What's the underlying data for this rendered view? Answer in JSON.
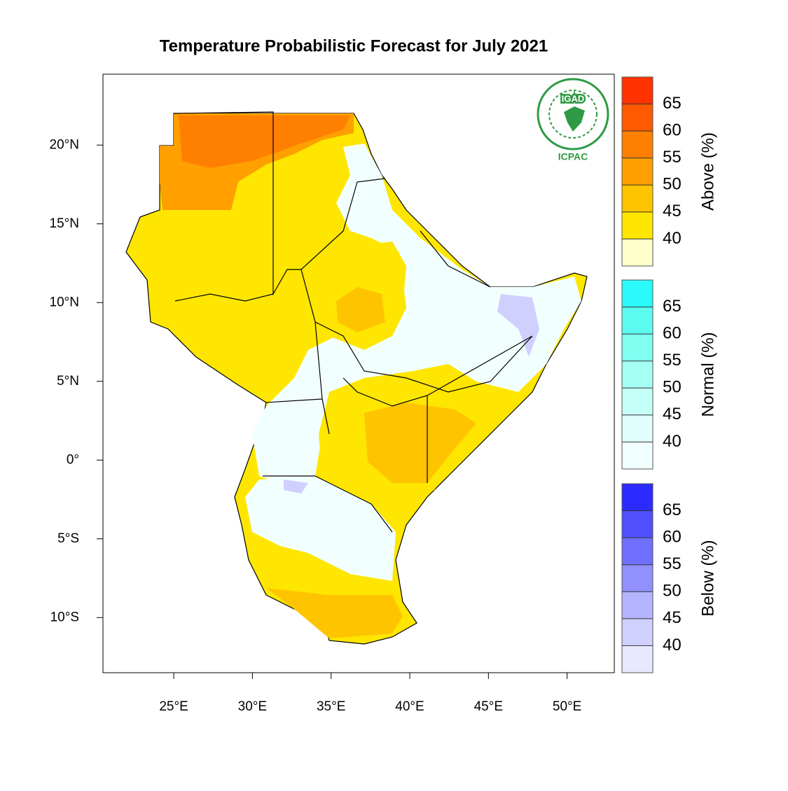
{
  "map": {
    "title": "Temperature Probabilistic Forecast for July 2021",
    "xlim": [
      20.5,
      53
    ],
    "ylim": [
      -13.5,
      24.5
    ],
    "xticks": [
      {
        "value": 25,
        "label": "25°E"
      },
      {
        "value": 30,
        "label": "30°E"
      },
      {
        "value": 35,
        "label": "35°E"
      },
      {
        "value": 40,
        "label": "40°E"
      },
      {
        "value": 45,
        "label": "45°E"
      },
      {
        "value": 50,
        "label": "50°E"
      }
    ],
    "yticks": [
      {
        "value": 20,
        "label": "20°N"
      },
      {
        "value": 15,
        "label": "15°N"
      },
      {
        "value": 10,
        "label": "10°N"
      },
      {
        "value": 5,
        "label": "5°N"
      },
      {
        "value": 0,
        "label": "0°"
      },
      {
        "value": -5,
        "label": "5°S"
      },
      {
        "value": -10,
        "label": "10°S"
      }
    ],
    "logo": {
      "name": "IGAD",
      "subtitle": "ICPAC"
    },
    "colorbars": [
      {
        "label": "Above (%)",
        "levels": [
          40,
          45,
          50,
          55,
          60,
          65
        ],
        "colors": [
          "#ffffcc",
          "#ffe600",
          "#ffc400",
          "#ff9f00",
          "#ff7f00",
          "#ff5a00",
          "#ff3300"
        ]
      },
      {
        "label": "Normal (%)",
        "levels": [
          40,
          45,
          50,
          55,
          60,
          65
        ],
        "colors": [
          "#f2ffff",
          "#e0fffc",
          "#c4fff8",
          "#a4fff4",
          "#80fff0",
          "#5cfdf0",
          "#2bfafa"
        ]
      },
      {
        "label": "Below (%)",
        "levels": [
          40,
          45,
          50,
          55,
          60,
          65
        ],
        "colors": [
          "#e8e8ff",
          "#d0d0ff",
          "#b4b4ff",
          "#9090ff",
          "#7070ff",
          "#5050ff",
          "#2b2bff"
        ]
      }
    ]
  }
}
